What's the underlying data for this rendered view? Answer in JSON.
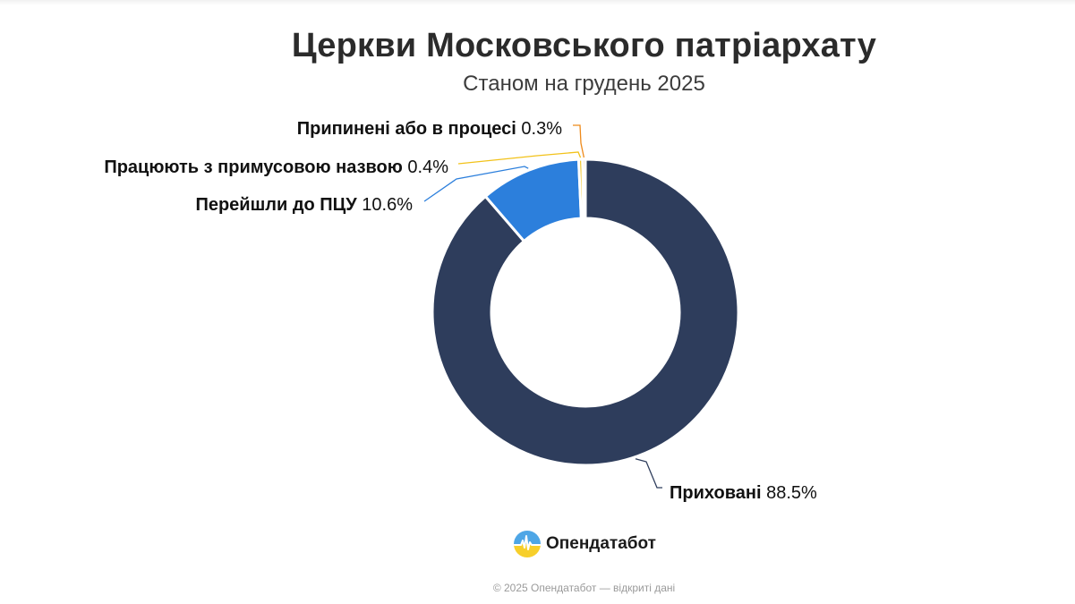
{
  "chart_data": {
    "type": "pie",
    "variant": "donut",
    "title": "Церкви Московського патріархату",
    "subtitle": "Станом на грудень 2025",
    "series": [
      {
        "name": "Приховані",
        "value": 88.5,
        "display": "88.5%",
        "color": "#2e3d5c"
      },
      {
        "name": "Перейшли до ПЦУ",
        "value": 10.6,
        "display": "10.6%",
        "color": "#2c7fdc"
      },
      {
        "name": "Працюють з примусовою назвою",
        "value": 0.4,
        "display": "0.4%",
        "color": "#f2c21a"
      },
      {
        "name": "Припинені або в процесі",
        "value": 0.3,
        "display": "0.3%",
        "color": "#ee8a1b"
      }
    ],
    "legend": "none",
    "data_labels": "outside with leader lines"
  },
  "brand": {
    "name": "Опендатабот",
    "logo_icon": "opendatabot-logo-icon"
  },
  "footer": {
    "text": "© 2025 Опендатабот — відкриті дані"
  }
}
